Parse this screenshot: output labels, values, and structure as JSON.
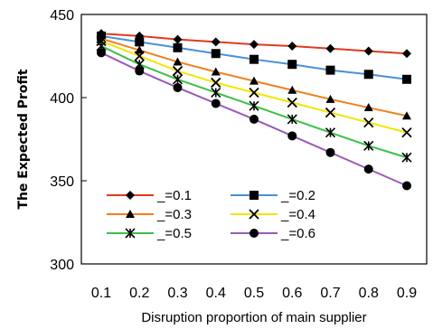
{
  "chart_data": {
    "type": "line",
    "title": "",
    "xlabel": "Disruption proportion of main supplier",
    "ylabel": "The Expected Profit",
    "x": [
      0.1,
      0.2,
      0.3,
      0.4,
      0.5,
      0.6,
      0.7,
      0.8,
      0.9
    ],
    "x_tick_labels": [
      "0.1",
      "0.2",
      "0.3",
      "0.4",
      "0.5",
      "0.6",
      "0.7",
      "0.8",
      "0.9"
    ],
    "ylim": [
      300,
      450
    ],
    "y_ticks": [
      300,
      350,
      400,
      450
    ],
    "y_tick_labels": [
      "300",
      "350",
      "400",
      "450"
    ],
    "grid": false,
    "legend_position": "bottom-left",
    "series": [
      {
        "name": "_=0.1",
        "marker": "diamond",
        "color": "#e03a1e",
        "values": [
          438.5,
          437,
          435,
          433.5,
          432,
          431,
          429.5,
          428,
          426.5
        ]
      },
      {
        "name": "_=0.2",
        "marker": "square",
        "color": "#4a90d9",
        "values": [
          437,
          433.5,
          430,
          426.5,
          423,
          420,
          416.5,
          414,
          411
        ]
      },
      {
        "name": "_=0.3",
        "marker": "triangle",
        "color": "#f08020",
        "values": [
          435.5,
          428.5,
          421.5,
          415.5,
          410,
          404.5,
          399,
          394,
          389
        ]
      },
      {
        "name": "_=0.4",
        "marker": "x",
        "color": "#f2e600",
        "values": [
          434,
          425,
          416,
          409,
          403,
          397,
          391,
          385,
          379
        ]
      },
      {
        "name": "_=0.5",
        "marker": "star",
        "color": "#3cc048",
        "values": [
          431,
          420,
          411,
          403,
          395,
          387,
          379,
          371,
          364
        ]
      },
      {
        "name": "_=0.6",
        "marker": "circle",
        "color": "#9a5ab8",
        "values": [
          427,
          416,
          406,
          396.5,
          387,
          377,
          367,
          357,
          347
        ]
      }
    ]
  }
}
